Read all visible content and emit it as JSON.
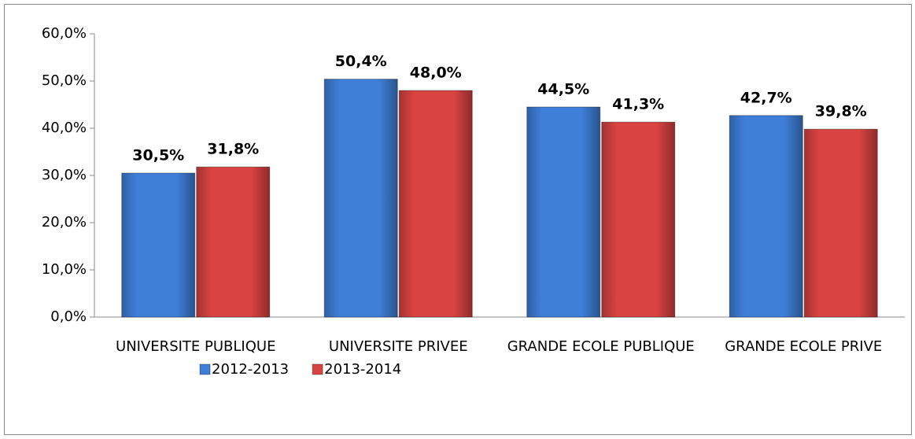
{
  "chart_data": {
    "type": "bar",
    "categories": [
      "UNIVERSITE PUBLIQUE",
      "UNIVERSITE PRIVEE",
      "GRANDE ECOLE PUBLIQUE",
      "GRANDE ECOLE PRIVE"
    ],
    "series": [
      {
        "name": "2012-2013",
        "color": "#3f7fd9",
        "values": [
          30.5,
          50.4,
          44.5,
          42.7
        ],
        "value_labels": [
          "30,5%",
          "50,4%",
          "44,5%",
          "42,7%"
        ]
      },
      {
        "name": "2013-2014",
        "color": "#d94341",
        "values": [
          31.8,
          48.0,
          41.3,
          39.8
        ],
        "value_labels": [
          "31,8%",
          "48,0%",
          "41,3%",
          "39,8%"
        ]
      }
    ],
    "ylim": [
      0,
      60
    ],
    "yticks": [
      {
        "value": 0,
        "label": "0,0%"
      },
      {
        "value": 10,
        "label": "10,0%"
      },
      {
        "value": 20,
        "label": "20,0%"
      },
      {
        "value": 30,
        "label": "30,0%"
      },
      {
        "value": 40,
        "label": "40,0%"
      },
      {
        "value": 50,
        "label": "50,0%"
      },
      {
        "value": 60,
        "label": "60,0%"
      }
    ],
    "grid": false,
    "legend": "bottom"
  }
}
